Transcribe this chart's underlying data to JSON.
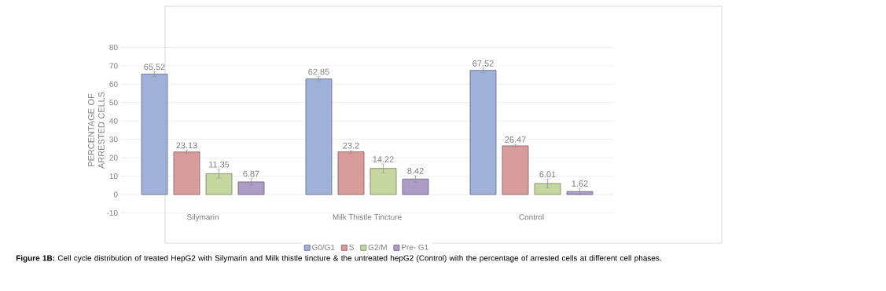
{
  "chart_data": {
    "type": "bar",
    "ylabel": "PERCENTAGE OF ARRESTED CELLS",
    "categories": [
      "Silymarin",
      "Milk Thistle Tincture",
      "Control"
    ],
    "series": [
      {
        "name": "G0/G1",
        "color": "#9fb1d8",
        "values": [
          65.52,
          62.85,
          67.52
        ],
        "errors": [
          1.3,
          1.3,
          1.2
        ]
      },
      {
        "name": "S",
        "color": "#d89d9b",
        "values": [
          23.13,
          23.2,
          26.47
        ],
        "errors": [
          1.0,
          0.8,
          0.8
        ]
      },
      {
        "name": "G2/M",
        "color": "#c4d79e",
        "values": [
          11.35,
          14.22,
          6.01
        ],
        "errors": [
          2.4,
          2.4,
          2.4
        ]
      },
      {
        "name": "Pre- G1",
        "color": "#ad9cc4",
        "values": [
          6.87,
          8.42,
          1.62
        ],
        "errors": [
          1.8,
          1.8,
          1.8
        ]
      }
    ],
    "ylim": [
      -10,
      80
    ],
    "yticks": [
      -10,
      0,
      10,
      20,
      30,
      40,
      50,
      60,
      70,
      80
    ],
    "grid": "y",
    "legend": "bottom",
    "data_labels": true,
    "annotations": [
      "**Figure 1B:** Cell cycle distribution of treated HepG2 with Silymarin and Milk thistle tincture & the untreated hepG2 (Control) with the percentage of arrested cells at different cell phases."
    ]
  }
}
